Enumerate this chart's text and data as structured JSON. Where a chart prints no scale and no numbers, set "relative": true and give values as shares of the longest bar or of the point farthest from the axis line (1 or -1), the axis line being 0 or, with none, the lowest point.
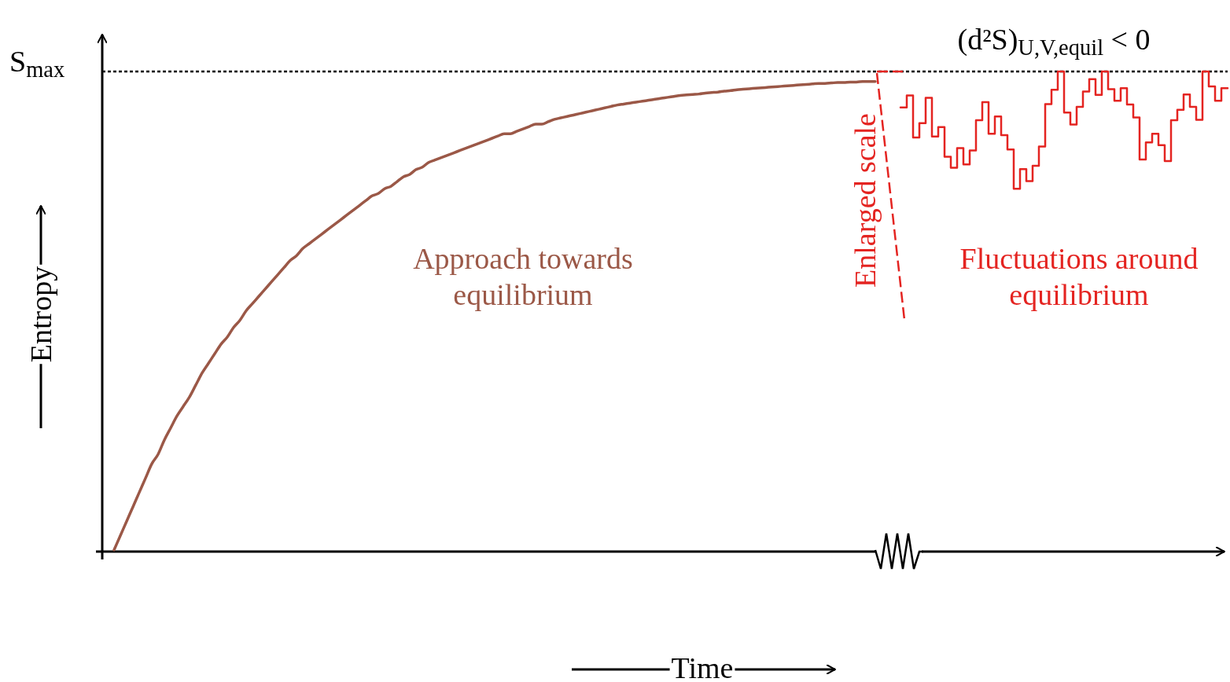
{
  "chart_data": {
    "type": "line",
    "relative": true,
    "xlabel": "Time",
    "ylabel": "Entropy",
    "categories": [
      null,
      null,
      null,
      null,
      null,
      null,
      null,
      null,
      null,
      null,
      null,
      null,
      null,
      null,
      null,
      null,
      null,
      null,
      null,
      null,
      null,
      null,
      null,
      null,
      null,
      null,
      null,
      null,
      null,
      null,
      null,
      null,
      null,
      null,
      null,
      null,
      null,
      null,
      null,
      null,
      null,
      null,
      null,
      null,
      null,
      null,
      null,
      null,
      null,
      null,
      null,
      null,
      null,
      null,
      null,
      null,
      null,
      null,
      null,
      null,
      null,
      null,
      null,
      null,
      null,
      null,
      null,
      null,
      null,
      null,
      null,
      null,
      null,
      null,
      null,
      null,
      null,
      null,
      null,
      null,
      null,
      null,
      null,
      null,
      null,
      null,
      null,
      null,
      null,
      null,
      null,
      null,
      null,
      null,
      null,
      null,
      null,
      null,
      null,
      null,
      null,
      null,
      null,
      null,
      null,
      null,
      null,
      null,
      null,
      null,
      null,
      null,
      null,
      null,
      null,
      null,
      null,
      null,
      null,
      null,
      null,
      null,
      null,
      null,
      null,
      null,
      null,
      null,
      null,
      null,
      null,
      null,
      null,
      null,
      null,
      null,
      null,
      null,
      null,
      null,
      null,
      null,
      null,
      null,
      null,
      null,
      null,
      null,
      null,
      null,
      null,
      null,
      null,
      null,
      null,
      null,
      null,
      null,
      null,
      null,
      null,
      null,
      null,
      null,
      null,
      null,
      null,
      null,
      null,
      null,
      null,
      null,
      null,
      null,
      null,
      null,
      null,
      null
    ],
    "series": [
      {
        "type": "line",
        "color": "#9b5847",
        "values": [
          0,
          0.03,
          0.06,
          0.09,
          0.12,
          0.15,
          0.18,
          0.2,
          0.23,
          0.255,
          0.28,
          0.3,
          0.32,
          0.345,
          0.37,
          0.39,
          0.41,
          0.43,
          0.445,
          0.465,
          0.48,
          0.5,
          0.515,
          0.53,
          0.545,
          0.56,
          0.575,
          0.59,
          0.605,
          0.615,
          0.63,
          0.64,
          0.65,
          0.66,
          0.67,
          0.68,
          0.69,
          0.7,
          0.71,
          0.72,
          0.73,
          0.74,
          0.745,
          0.755,
          0.76,
          0.77,
          0.78,
          0.785,
          0.795,
          0.8,
          0.81,
          0.815,
          0.82,
          0.825,
          0.83,
          0.835,
          0.84,
          0.845,
          0.85,
          0.855,
          0.86,
          0.865,
          0.87,
          0.87,
          0.875,
          0.88,
          0.885,
          0.89,
          0.89,
          0.895,
          0.9,
          0.903,
          0.906,
          0.909,
          0.912,
          0.915,
          0.918,
          0.921,
          0.924,
          0.927,
          0.93,
          0.932,
          0.934,
          0.936,
          0.938,
          0.94,
          0.942,
          0.944,
          0.946,
          0.948,
          0.95,
          0.951,
          0.952,
          0.953,
          0.955,
          0.956,
          0.957,
          0.959,
          0.96,
          0.962,
          0.963,
          0.964,
          0.965,
          0.966,
          0.967,
          0.968,
          0.969,
          0.97,
          0.971,
          0.972,
          0.973,
          0.974,
          0.975,
          0.975,
          0.976,
          0.977,
          0.977,
          0.978,
          0.978,
          0.979,
          0.979,
          0.979,
          null,
          null,
          null,
          null,
          null,
          null,
          null,
          null,
          null,
          null,
          null,
          null,
          null,
          null,
          null,
          null,
          null,
          null,
          null,
          null,
          null,
          null,
          null,
          null,
          null,
          null,
          null,
          null,
          null,
          null,
          null,
          null,
          null,
          null,
          null,
          null,
          null,
          null,
          null,
          null,
          null,
          null,
          null,
          null,
          null,
          null,
          null,
          null,
          null,
          null,
          null,
          null,
          null,
          null,
          null,
          null
        ]
      },
      {
        "type": "step",
        "color": "#e42421",
        "values": [
          null,
          null,
          null,
          null,
          null,
          null,
          null,
          null,
          null,
          null,
          null,
          null,
          null,
          null,
          null,
          null,
          null,
          null,
          null,
          null,
          null,
          null,
          null,
          null,
          null,
          null,
          null,
          null,
          null,
          null,
          null,
          null,
          null,
          null,
          null,
          null,
          null,
          null,
          null,
          null,
          null,
          null,
          null,
          null,
          null,
          null,
          null,
          null,
          null,
          null,
          null,
          null,
          null,
          null,
          null,
          null,
          null,
          null,
          null,
          null,
          null,
          null,
          null,
          null,
          null,
          null,
          null,
          null,
          null,
          null,
          null,
          null,
          null,
          null,
          null,
          null,
          null,
          null,
          null,
          null,
          null,
          null,
          null,
          null,
          null,
          null,
          null,
          null,
          null,
          null,
          null,
          null,
          null,
          null,
          null,
          null,
          null,
          null,
          null,
          null,
          null,
          null,
          null,
          null,
          null,
          null,
          null,
          null,
          null,
          null,
          null,
          null,
          null,
          null,
          null,
          null,
          null,
          null,
          null,
          null,
          null,
          null,
          null,
          null,
          null,
          0.925,
          0.95,
          0.862,
          0.892,
          0.945,
          0.864,
          0.884,
          0.822,
          0.799,
          0.84,
          0.806,
          0.835,
          0.898,
          0.936,
          0.87,
          0.906,
          0.867,
          0.837,
          0.755,
          0.796,
          0.771,
          0.803,
          0.843,
          0.932,
          0.962,
          1,
          0.914,
          0.889,
          0.926,
          0.958,
          0.984,
          0.951,
          1,
          0.963,
          0.939,
          0.965,
          0.931,
          0.904,
          0.816,
          0.852,
          0.87,
          0.846,
          0.813,
          0.898,
          0.92,
          0.952,
          0.926,
          0.899,
          1,
          0.969,
          0.939,
          0.965,
          0.965
        ]
      }
    ],
    "ref_lines": [
      {
        "axis": "y",
        "value": 1,
        "label": "S$_{max}$",
        "color": "#000000",
        "line_style": "dotted"
      }
    ],
    "annotations": [
      "Approach towards equilibrium",
      "Fluctuations around equilibrium",
      "Enlarged scale",
      "(d²S)$_{U,V,equil}$ < 0"
    ]
  }
}
